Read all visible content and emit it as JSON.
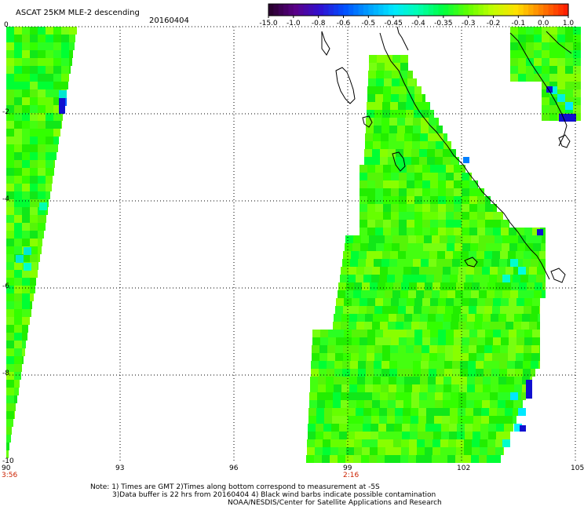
{
  "title": "ASCAT 25KM MLE-2 descending",
  "date": "20160404",
  "colorbar": {
    "labels": [
      "-15.0",
      "-1.0",
      "-0.8",
      "-0.6",
      "-0.5",
      "-0.45",
      "-0.4",
      "-0.35",
      "-0.3",
      "-0.2",
      "-0.1",
      "0.0",
      "1.0"
    ],
    "colors": [
      "#2a0030",
      "#5a0088",
      "#3010d0",
      "#0050ff",
      "#00a0ff",
      "#00e8ff",
      "#00ffb0",
      "#00ff40",
      "#60ff00",
      "#c0ff00",
      "#ffe000",
      "#ff8000",
      "#ff2000"
    ]
  },
  "axes": {
    "lat_labels": [
      "0",
      "-2",
      "-4",
      "-6",
      "-8",
      "-10"
    ],
    "lon_labels": [
      "90",
      "93",
      "96",
      "99",
      "102",
      "105"
    ],
    "time_labels": [
      {
        "text": "3:56",
        "lon": "90"
      },
      {
        "text": "2:16",
        "lon": "99"
      }
    ]
  },
  "notes": {
    "line1": "Note: 1) Times are GMT 2)Times along bottom correspond to measurement at -5S",
    "line2": "3)Data buffer is 22 hrs from 20160404 4) Black wind barbs indicate possible contamination",
    "line3": "NOAA/NESDIS/Center for Satellite Applications and Research"
  }
}
